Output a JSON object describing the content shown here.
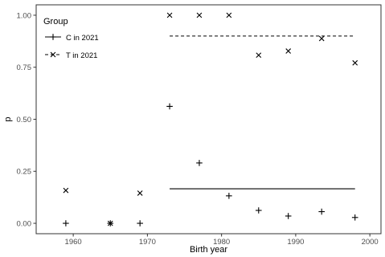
{
  "chart_data": {
    "type": "scatter",
    "xlabel": "Birth year",
    "ylabel": "p",
    "xlim": [
      1955,
      2001.5
    ],
    "ylim": [
      -0.05,
      1.05
    ],
    "xticks": [
      1960,
      1970,
      1980,
      1990,
      2000
    ],
    "yticks": [
      0.0,
      0.25,
      0.5,
      0.75,
      1.0
    ],
    "xtick_labels": [
      "1960",
      "1970",
      "1980",
      "1990",
      "2000"
    ],
    "ytick_labels": [
      "0.00",
      "0.25",
      "0.50",
      "0.75",
      "1.00"
    ],
    "grid": false,
    "legend": {
      "title": "Group",
      "placement": "top-left",
      "entries": [
        {
          "label": "C in 2021",
          "marker": "plus",
          "line": "solid"
        },
        {
          "label": "T in 2021",
          "marker": "cross",
          "line": "dashed"
        }
      ]
    },
    "series": [
      {
        "name": "C in 2021",
        "marker": "plus",
        "x": [
          1959,
          1965,
          1969,
          1973,
          1977,
          1981,
          1985,
          1989,
          1993.5,
          1998
        ],
        "y": [
          0.0,
          0.0,
          0.0,
          0.562,
          0.29,
          0.132,
          0.062,
          0.035,
          0.056,
          0.028
        ],
        "reference_line": {
          "style": "solid",
          "x": [
            1973,
            1998
          ],
          "y": 0.166
        }
      },
      {
        "name": "T in 2021",
        "marker": "cross",
        "x": [
          1959,
          1965,
          1969,
          1973,
          1977,
          1981,
          1985,
          1989,
          1993.5,
          1998
        ],
        "y": [
          0.158,
          0.0,
          0.145,
          1.0,
          1.0,
          1.0,
          0.808,
          0.828,
          0.888,
          0.771
        ],
        "reference_line": {
          "style": "dashed",
          "x": [
            1973,
            1998
          ],
          "y": 0.9
        }
      }
    ]
  }
}
